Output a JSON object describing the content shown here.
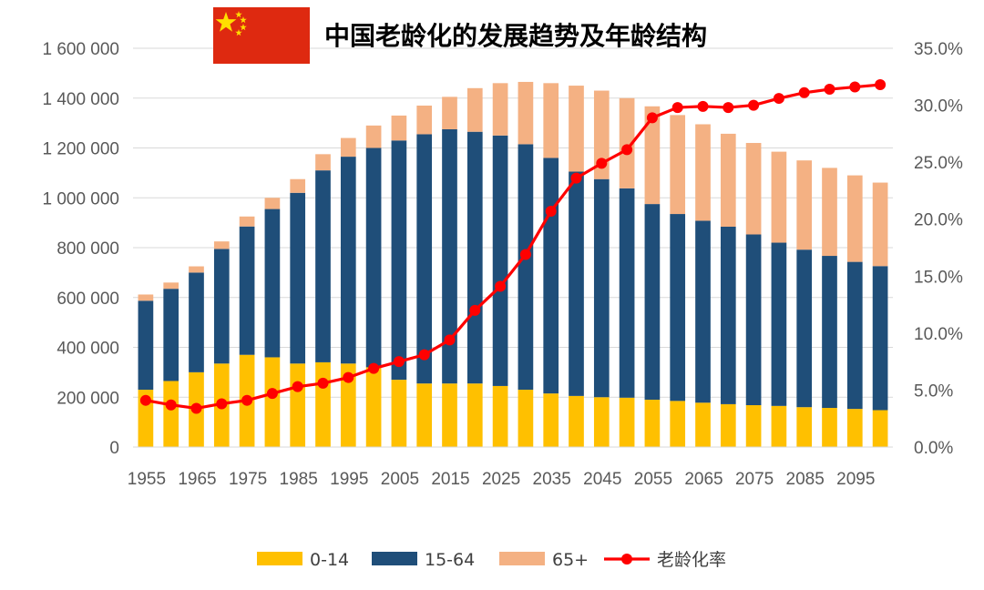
{
  "chart_data": {
    "type": "bar",
    "stacked": true,
    "title": "中国老龄化的发展趋势及年龄结构",
    "categories": [
      1955,
      1960,
      1965,
      1970,
      1975,
      1980,
      1985,
      1990,
      1995,
      2000,
      2005,
      2010,
      2015,
      2020,
      2025,
      2030,
      2035,
      2040,
      2045,
      2050,
      2055,
      2060,
      2065,
      2070,
      2075,
      2080,
      2085,
      2090,
      2095,
      2100
    ],
    "x_tick_labels": [
      "1955",
      "1965",
      "1975",
      "1985",
      "1995",
      "2005",
      "2015",
      "2025",
      "2035",
      "2045",
      "2055",
      "2065",
      "2075",
      "2085",
      "2095"
    ],
    "y_tick_labels": [
      "0",
      "200 000",
      "400 000",
      "600 000",
      "800 000",
      "1 000 000",
      "1 200 000",
      "1 400 000",
      "1 600 000"
    ],
    "y2_tick_labels": [
      "0.0%",
      "5.0%",
      "10.0%",
      "15.0%",
      "20.0%",
      "25.0%",
      "30.0%",
      "35.0%"
    ],
    "ylim": [
      0,
      1600000
    ],
    "y2lim": [
      0,
      35
    ],
    "y2_unit": "percent",
    "series": [
      {
        "name": "0-14",
        "kind": "bar",
        "color": "#FFC000",
        "values": [
          230000,
          265000,
          300000,
          335000,
          370000,
          360000,
          335000,
          340000,
          335000,
          320000,
          270000,
          255000,
          255000,
          255000,
          245000,
          230000,
          215000,
          205000,
          200000,
          198000,
          190000,
          185000,
          178000,
          172000,
          168000,
          165000,
          160000,
          157000,
          153000,
          148000
        ]
      },
      {
        "name": "15-64",
        "kind": "bar",
        "color": "#1F4E79",
        "values": [
          357000,
          370000,
          400000,
          460000,
          515000,
          595000,
          685000,
          770000,
          830000,
          880000,
          960000,
          1000000,
          1020000,
          1010000,
          1005000,
          985000,
          945000,
          900000,
          875000,
          840000,
          785000,
          750000,
          730000,
          712000,
          685000,
          655000,
          632000,
          610000,
          590000,
          578000
        ]
      },
      {
        "name": "65+",
        "kind": "bar",
        "color": "#F4B183",
        "values": [
          25000,
          25000,
          25000,
          30000,
          40000,
          45000,
          55000,
          65000,
          75000,
          90000,
          100000,
          115000,
          130000,
          175000,
          210000,
          250000,
          300000,
          345000,
          355000,
          362000,
          392000,
          397000,
          387000,
          373000,
          367000,
          365000,
          358000,
          353000,
          347000,
          335000
        ]
      },
      {
        "name": "老龄化率",
        "kind": "line",
        "axis": "y2",
        "color": "#FF0000",
        "values": [
          4.1,
          3.7,
          3.4,
          3.8,
          4.1,
          4.7,
          5.3,
          5.6,
          6.1,
          6.9,
          7.5,
          8.1,
          9.4,
          12.0,
          14.1,
          16.9,
          20.7,
          23.6,
          24.9,
          26.1,
          28.9,
          29.8,
          29.9,
          29.8,
          30.0,
          30.6,
          31.1,
          31.4,
          31.6,
          31.8
        ]
      }
    ],
    "legend_position": "bottom",
    "grid": "horizontal"
  },
  "flag_icon": "china-flag-icon",
  "colors": {
    "axis_text": "#595959",
    "grid": "#D9D9D9",
    "flag_red": "#DE2910",
    "flag_star": "#FFDE00"
  }
}
